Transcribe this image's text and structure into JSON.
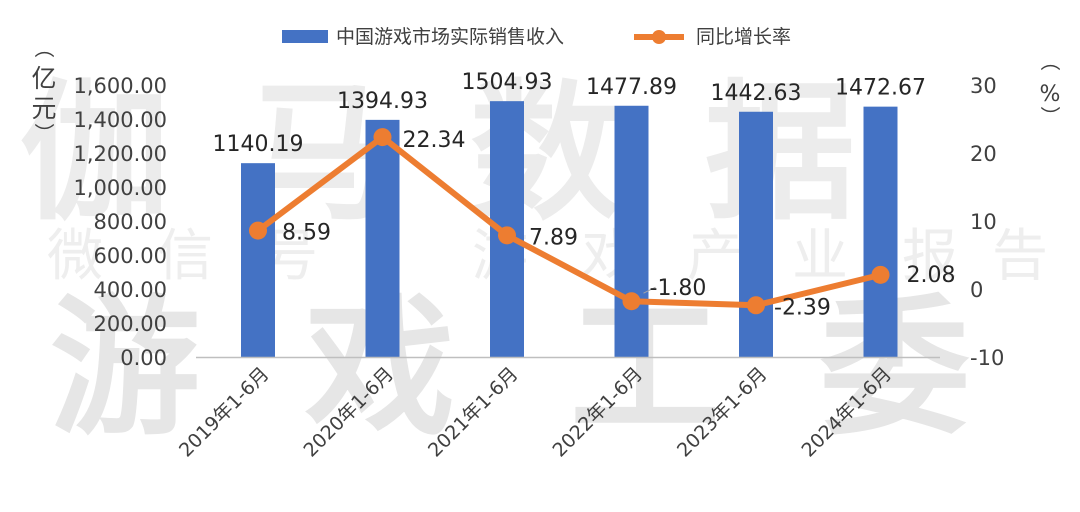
{
  "chart_data": {
    "type": "bar",
    "categories": [
      "2019年1-6月",
      "2020年1-6月",
      "2021年1-6月",
      "2022年1-6月",
      "2023年1-6月",
      "2024年1-6月"
    ],
    "series": [
      {
        "name": "中国游戏市场实际销售收入",
        "type": "bar",
        "axis": "left",
        "values": [
          1140.19,
          1394.93,
          1504.93,
          1477.89,
          1442.63,
          1472.67
        ],
        "labels": [
          "1140.19",
          "1394.93",
          "1504.93",
          "1477.89",
          "1442.63",
          "1472.67"
        ],
        "color": "#4472C4"
      },
      {
        "name": "同比增长率",
        "type": "line",
        "axis": "right",
        "values": [
          8.59,
          22.34,
          7.89,
          -1.8,
          -2.39,
          2.08
        ],
        "labels": [
          "8.59",
          "22.34",
          "7.89",
          "-1.80",
          "-2.39",
          "2.08"
        ],
        "color": "#ED7D31"
      }
    ],
    "y_left": {
      "label": "（亿元）",
      "ylim": [
        0,
        1600
      ],
      "ticks": [
        "0.00",
        "200.00",
        "400.00",
        "600.00",
        "800.00",
        "1,000.00",
        "1,200.00",
        "1,400.00",
        "1,600.00"
      ]
    },
    "y_right": {
      "label": "（%）",
      "ylim": [
        -10,
        30
      ],
      "ticks": [
        "-10",
        "0",
        "10",
        "20",
        "30"
      ]
    },
    "legend": "top",
    "grid": false
  },
  "watermark": {
    "line1": "伽马数据",
    "line2": "微信号：游戏产业报告",
    "line3": "游戏工委"
  }
}
